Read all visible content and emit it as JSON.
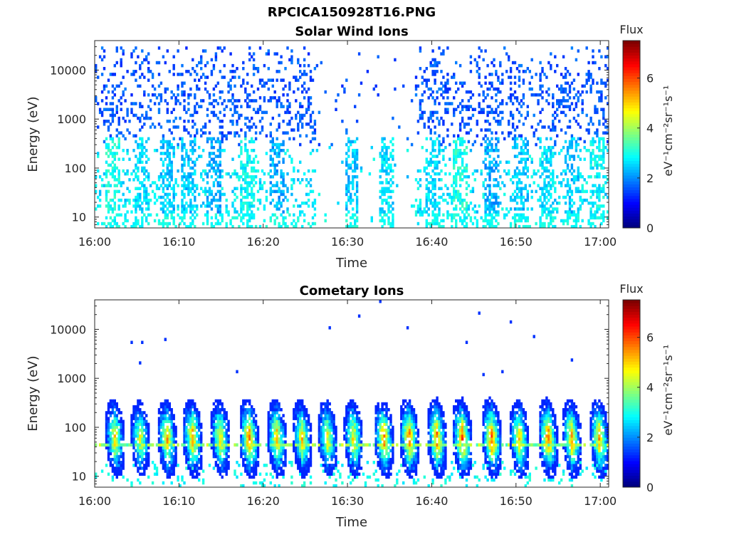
{
  "figure": {
    "title": "RPCICA150928T16.PNG"
  },
  "chart_data": [
    {
      "type": "heatmap",
      "title": "Solar Wind Ions",
      "xlabel": "Time",
      "ylabel": "Energy (eV)",
      "x_ticks": [
        "16:00",
        "16:10",
        "16:20",
        "16:30",
        "16:40",
        "16:50",
        "17:00"
      ],
      "y_ticks": [
        "10",
        "100",
        "1000",
        "10000"
      ],
      "y_scale": "log",
      "ylim": [
        6,
        40000
      ],
      "xlim_minutes": [
        0,
        61
      ],
      "colorbar": {
        "title": "Flux",
        "label": "eV⁻¹cm⁻²sr⁻¹s⁻¹",
        "ticks": [
          "0",
          "2",
          "4",
          "6"
        ],
        "range": [
          0,
          7.5
        ],
        "colormap": "jet"
      },
      "description_of_data": "Sparse low-flux (blue) counts spread 100-30000 eV; cyan/green bands below 300 eV; a gap near 16:26-16:37 with few counts.",
      "bursts": [
        {
          "t": 2.0,
          "peak": 3.4
        },
        {
          "t": 5.5,
          "peak": 3.0
        },
        {
          "t": 8.5,
          "peak": 2.8
        },
        {
          "t": 11.0,
          "peak": 2.8
        },
        {
          "t": 14.0,
          "peak": 2.6
        },
        {
          "t": 18.0,
          "peak": 3.2
        },
        {
          "t": 21.5,
          "peak": 2.6
        },
        {
          "t": 30.3,
          "peak": 2.8
        },
        {
          "t": 34.5,
          "peak": 3.0
        },
        {
          "t": 40.0,
          "peak": 3.0
        },
        {
          "t": 43.3,
          "peak": 3.4
        },
        {
          "t": 47.0,
          "peak": 2.6
        },
        {
          "t": 50.5,
          "peak": 2.8
        },
        {
          "t": 53.5,
          "peak": 3.0
        },
        {
          "t": 56.5,
          "peak": 2.8
        },
        {
          "t": 59.5,
          "peak": 3.2
        }
      ]
    },
    {
      "type": "heatmap",
      "title": "Cometary Ions",
      "xlabel": "Time",
      "ylabel": "Energy (eV)",
      "x_ticks": [
        "16:00",
        "16:10",
        "16:20",
        "16:30",
        "16:40",
        "16:50",
        "17:00"
      ],
      "y_ticks": [
        "10",
        "100",
        "1000",
        "10000"
      ],
      "y_scale": "log",
      "ylim": [
        6,
        40000
      ],
      "xlim_minutes": [
        0,
        61
      ],
      "colorbar": {
        "title": "Flux",
        "label": "eV⁻¹cm⁻²sr⁻¹s⁻¹",
        "ticks": [
          "0",
          "2",
          "4",
          "6"
        ],
        "range": [
          0,
          7.5
        ],
        "colormap": "jet"
      },
      "description_of_data": "Periodic vertical bursts of ion flux between about 8 and 900 eV, peaking near 40 eV with values up to about 6; a persistent band near 40 eV.",
      "bursts": [
        {
          "t": 2.3,
          "peak": 5.0,
          "top": 900
        },
        {
          "t": 5.3,
          "peak": 4.6,
          "top": 500
        },
        {
          "t": 8.5,
          "peak": 5.2,
          "top": 400
        },
        {
          "t": 11.5,
          "peak": 5.4,
          "top": 700
        },
        {
          "t": 14.8,
          "peak": 5.0,
          "top": 350
        },
        {
          "t": 18.2,
          "peak": 5.8,
          "top": 600
        },
        {
          "t": 21.5,
          "peak": 5.2,
          "top": 550
        },
        {
          "t": 24.5,
          "peak": 5.0,
          "top": 600
        },
        {
          "t": 27.5,
          "peak": 4.6,
          "top": 500
        },
        {
          "t": 30.6,
          "peak": 5.0,
          "top": 700
        },
        {
          "t": 34.2,
          "peak": 5.6,
          "top": 300
        },
        {
          "t": 37.2,
          "peak": 5.8,
          "top": 350
        },
        {
          "t": 40.5,
          "peak": 5.6,
          "top": 700
        },
        {
          "t": 43.5,
          "peak": 6.0,
          "top": 800
        },
        {
          "t": 47.0,
          "peak": 5.8,
          "top": 400
        },
        {
          "t": 50.3,
          "peak": 5.2,
          "top": 550
        },
        {
          "t": 53.7,
          "peak": 5.8,
          "top": 600
        },
        {
          "t": 56.5,
          "peak": 5.4,
          "top": 650
        },
        {
          "t": 59.8,
          "peak": 5.4,
          "top": 500
        }
      ]
    }
  ]
}
